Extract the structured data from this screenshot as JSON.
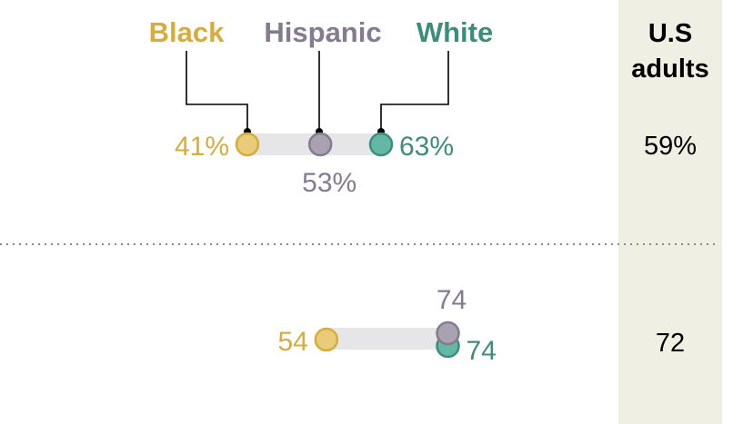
{
  "chart_data": {
    "type": "dot-range",
    "legend": [
      {
        "name": "Black",
        "color": "#d4ad3c"
      },
      {
        "name": "Hispanic",
        "color": "#847b8e"
      },
      {
        "name": "White",
        "color": "#3e8c7c"
      }
    ],
    "total_column": {
      "label_line1": "U.S",
      "label_line2": "adults"
    },
    "rows": [
      {
        "values": {
          "Black": 41,
          "Hispanic": 53,
          "White": 63
        },
        "labels": {
          "Black": "41%",
          "Hispanic": "53%",
          "White": "63%"
        },
        "total": "59%"
      },
      {
        "values": {
          "Black": 54,
          "Hispanic": 74,
          "White": 74
        },
        "labels": {
          "Black": "54",
          "Hispanic": "74",
          "White": "74"
        },
        "total": "72"
      }
    ],
    "grid": false
  },
  "colors": {
    "black_fill": "#e8cc7a",
    "hispanic_fill": "#aaa1b2",
    "white_fill": "#62b8a5",
    "range_bar": "#e6e6e9",
    "total_column_bg": "#f0efe4",
    "separator": "#888888"
  }
}
